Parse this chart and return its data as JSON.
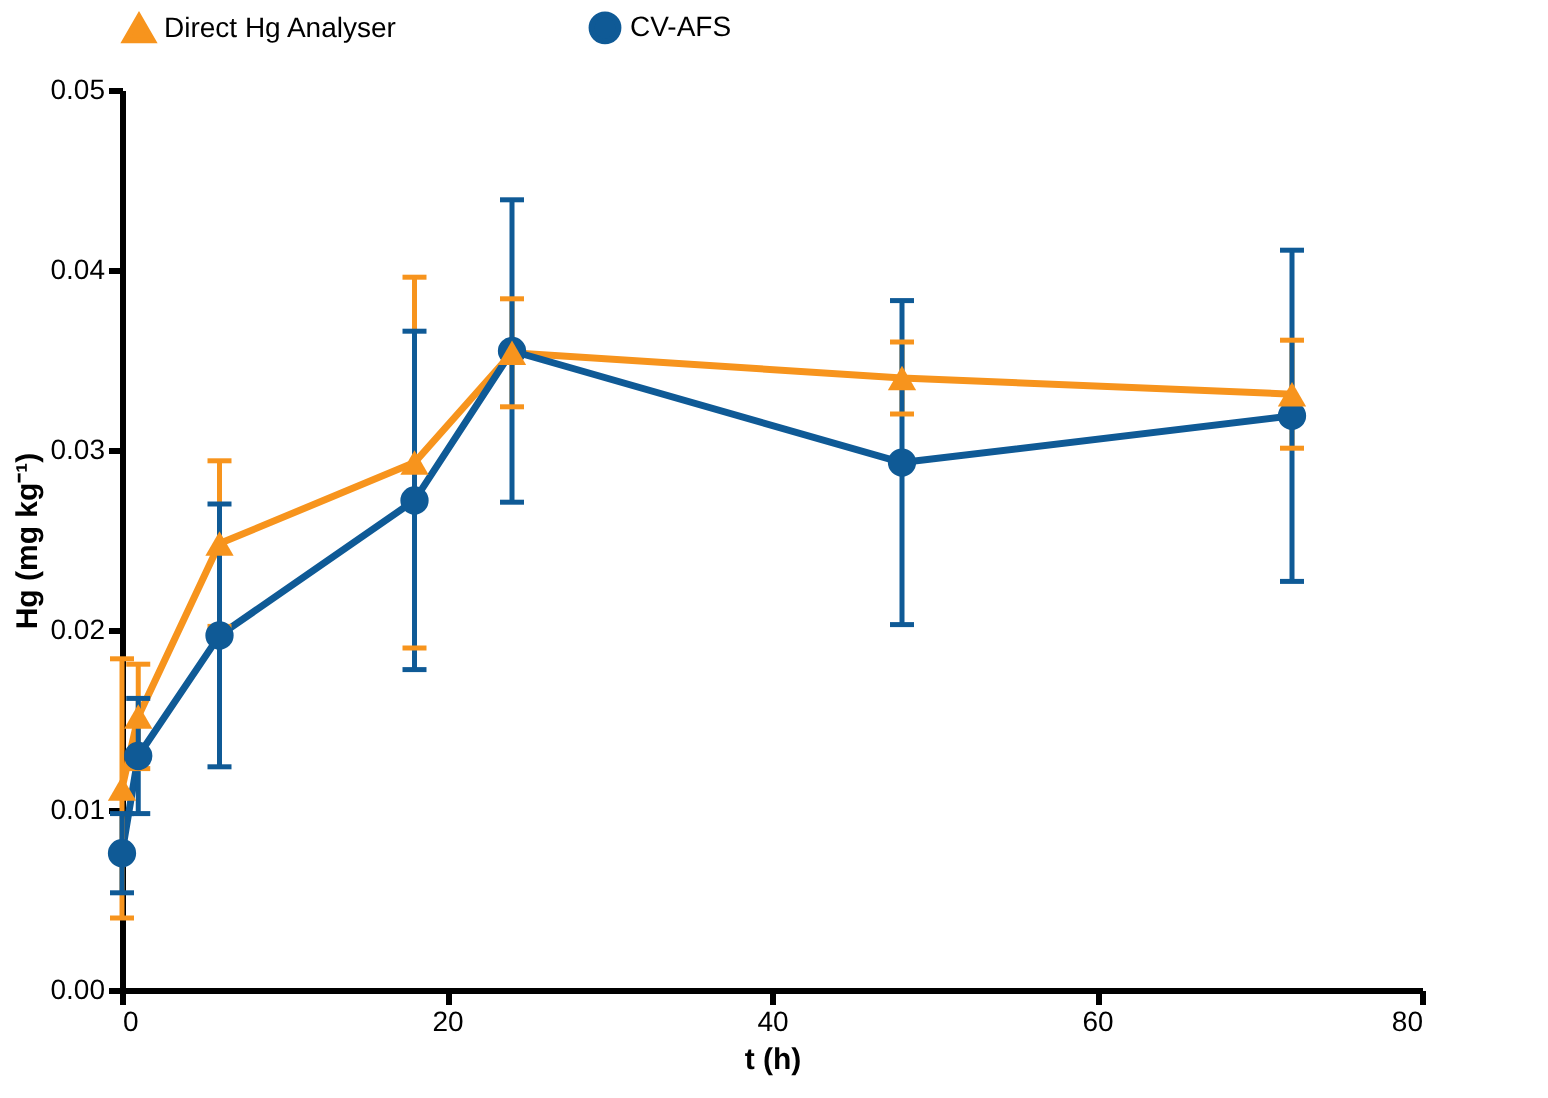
{
  "chart_data": {
    "type": "line",
    "xlabel": "t (h)",
    "ylabel": "Hg (mg kg⁻¹)",
    "x": [
      0,
      1,
      6,
      18,
      24,
      48,
      72
    ],
    "series": [
      {
        "name": "Direct Hg Analyser",
        "color": "#f7941d",
        "marker": "triangle",
        "values": [
          0.0112,
          0.0152,
          0.0248,
          0.0293,
          0.0354,
          0.034,
          0.0331
        ],
        "errors": [
          0.0072,
          0.0029,
          0.0046,
          0.0103,
          0.003,
          0.002,
          0.003
        ]
      },
      {
        "name": "CV-AFS",
        "color": "#0f5a96",
        "marker": "circle",
        "values": [
          0.0076,
          0.013,
          0.0197,
          0.0272,
          0.0355,
          0.0293,
          0.0319
        ],
        "errors": [
          0.0022,
          0.0032,
          0.0073,
          0.0094,
          0.0084,
          0.009,
          0.0092
        ]
      }
    ],
    "xlim": [
      0,
      80
    ],
    "xticks": [
      0,
      20,
      40,
      60,
      80
    ],
    "ylim": [
      0,
      0.05
    ],
    "yticks": [
      {
        "value": 0,
        "label": "0.00"
      },
      {
        "value": 0.01,
        "label": "0.01"
      },
      {
        "value": 0.02,
        "label": "0.02"
      },
      {
        "value": 0.03,
        "label": "0.03"
      },
      {
        "value": 0.04,
        "label": "0.04"
      },
      {
        "value": 0.05,
        "label": "0.05"
      }
    ],
    "legend": "top",
    "grid": false,
    "line_style": "solid"
  }
}
